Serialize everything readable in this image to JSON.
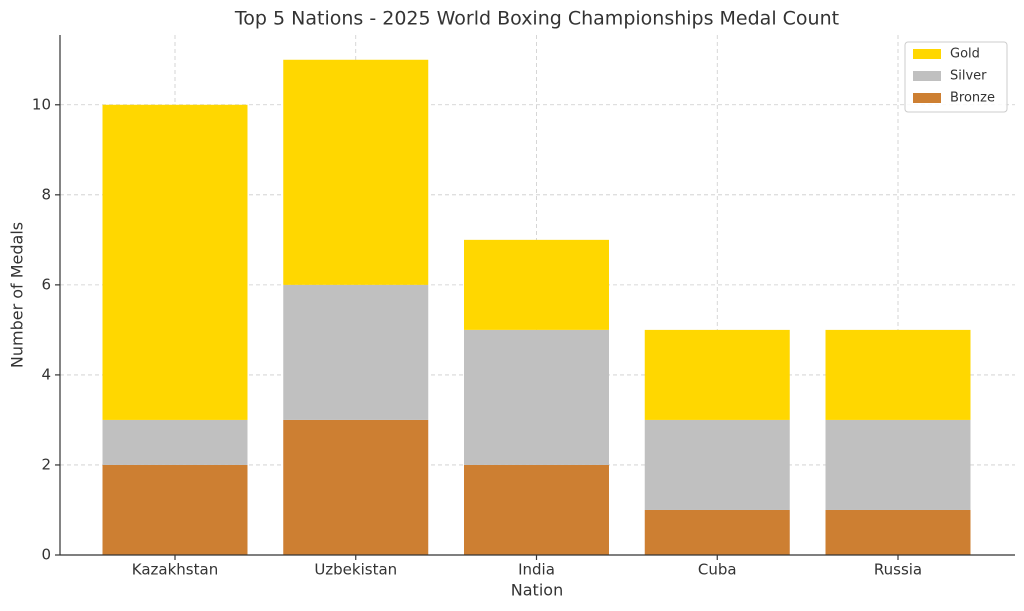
{
  "chart_data": {
    "type": "stacked_bar",
    "title": "Top 5 Nations - 2025 World Boxing Championships Medal Count",
    "x_label": "Nation",
    "y_label": "Number of Medals",
    "categories": [
      "Kazakhstan",
      "Uzbekistan",
      "India",
      "Cuba",
      "Russia"
    ],
    "series": [
      {
        "name": "Gold",
        "color": "#ffd700",
        "values": [
          7,
          5,
          2,
          2,
          2
        ]
      },
      {
        "name": "Silver",
        "color": "#c0c0c0",
        "values": [
          1,
          3,
          3,
          2,
          2
        ]
      },
      {
        "name": "Bronze",
        "color": "#cd7f32",
        "values": [
          2,
          3,
          2,
          1,
          1
        ]
      }
    ],
    "ylim": [
      0,
      11.55
    ],
    "yticks": [
      0,
      2,
      4,
      6,
      8,
      10
    ],
    "grid": true,
    "legend": "upper right"
  }
}
